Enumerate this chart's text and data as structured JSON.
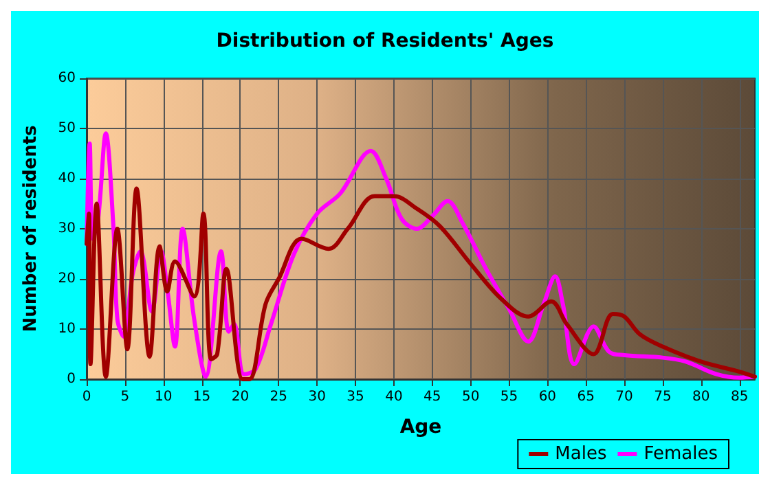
{
  "chart_data": {
    "type": "line",
    "title": "Distribution of Residents' Ages",
    "xlabel": "Age",
    "ylabel": "Number of residents",
    "xlim": [
      0,
      87
    ],
    "xticks": [
      0,
      5,
      10,
      15,
      20,
      25,
      30,
      35,
      40,
      45,
      50,
      55,
      60,
      65,
      70,
      75,
      80,
      85
    ],
    "ylim": [
      0,
      60
    ],
    "yticks": [
      0,
      10,
      20,
      30,
      40,
      50,
      60
    ],
    "grid": true,
    "legend": "bottom right",
    "marker": "none",
    "line_style": "solid",
    "series": [
      {
        "name": "Males",
        "color": "#a00000",
        "x": [
          0,
          0.3,
          0.5,
          1.3,
          2.5,
          4,
          5.3,
          6.5,
          8.2,
          9.5,
          10.5,
          11.5,
          14,
          15.2,
          16.2,
          17,
          18.2,
          20.3,
          21.2,
          23.3,
          25,
          28,
          31.5,
          34,
          37.5,
          40,
          43,
          46,
          50,
          54,
          57.5,
          60.5,
          62.5,
          66,
          68.5,
          70,
          72,
          75,
          80,
          85,
          87
        ],
        "values": [
          27,
          33,
          3,
          35,
          0.5,
          30,
          6,
          38,
          4.5,
          26.5,
          17.5,
          23.5,
          16.5,
          33,
          4,
          5,
          22,
          0,
          0,
          15,
          20,
          28,
          26,
          30,
          36.5,
          36.5,
          34,
          30.5,
          23,
          16,
          12.5,
          15.5,
          11,
          5,
          13,
          12.5,
          9,
          6.5,
          3.5,
          1.5,
          0.5
        ]
      },
      {
        "name": "Females",
        "color": "#ff00ff",
        "x": [
          0,
          0.4,
          0.8,
          1.5,
          2.5,
          3.5,
          4,
          4.8,
          6,
          7,
          8.5,
          9.7,
          10.5,
          11.5,
          12.5,
          14,
          15.5,
          17.5,
          18.5,
          19.2,
          20.5,
          22,
          24,
          27,
          30,
          33,
          37,
          39,
          41,
          43,
          45,
          47,
          49,
          52,
          55,
          57.5,
          59.5,
          61,
          62,
          63.5,
          66,
          68,
          70,
          75,
          78,
          82,
          85,
          87
        ],
        "values": [
          27,
          47,
          28,
          32,
          49,
          30,
          12,
          8.5,
          21,
          25.5,
          13.5,
          25.5,
          18,
          6.5,
          30,
          12,
          0.5,
          25.5,
          9.5,
          11,
          1,
          2,
          11,
          25,
          33,
          37,
          45.5,
          40,
          32,
          30,
          32.5,
          35.5,
          31,
          22,
          14,
          7.5,
          15,
          20.5,
          15,
          3,
          10.5,
          5.5,
          4.8,
          4.3,
          3.5,
          1,
          0.3,
          0.5
        ]
      }
    ]
  }
}
